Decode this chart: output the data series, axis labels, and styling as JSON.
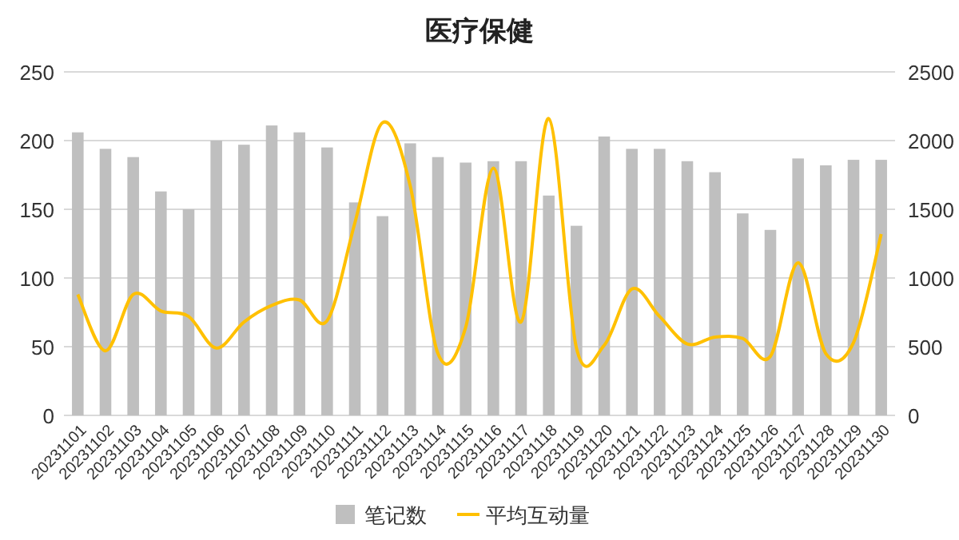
{
  "chart_data": {
    "type": "bar",
    "title": "医疗保健",
    "categories": [
      "20231101",
      "20231102",
      "20231103",
      "20231104",
      "20231105",
      "20231106",
      "20231107",
      "20231108",
      "20231109",
      "20231110",
      "20231111",
      "20231112",
      "20231113",
      "20231114",
      "20231115",
      "20231116",
      "20231117",
      "20231118",
      "20231119",
      "20231120",
      "20231121",
      "20231122",
      "20231123",
      "20231124",
      "20231125",
      "20231126",
      "20231127",
      "20231128",
      "20231129",
      "20231130"
    ],
    "series": [
      {
        "name": "笔记数",
        "color": "#bfbfbf",
        "values": [
          206,
          194,
          188,
          163,
          150,
          200,
          197,
          211,
          206,
          195,
          155,
          145,
          198,
          188,
          184,
          185,
          185,
          160,
          138,
          203,
          194,
          194,
          185,
          177,
          147,
          135,
          187,
          182,
          186,
          186
        ]
      },
      {
        "name": "平均互动量",
        "type": "line",
        "axis": "y2",
        "color": "#ffc000",
        "values": [
          880,
          470,
          880,
          760,
          720,
          490,
          680,
          800,
          840,
          690,
          1400,
          2130,
          1670,
          450,
          640,
          1800,
          680,
          2160,
          490,
          510,
          920,
          720,
          520,
          570,
          560,
          430,
          1110,
          450,
          530,
          1320
        ]
      }
    ],
    "ylim": [
      0,
      250
    ],
    "yticks": [
      0,
      50,
      100,
      150,
      200,
      250
    ],
    "y2lim": [
      0,
      2500
    ],
    "y2ticks": [
      0,
      500,
      1000,
      1500,
      2000,
      2500
    ],
    "grid": "y",
    "legend": "bottom",
    "marker": "none",
    "line_style": "solid"
  }
}
